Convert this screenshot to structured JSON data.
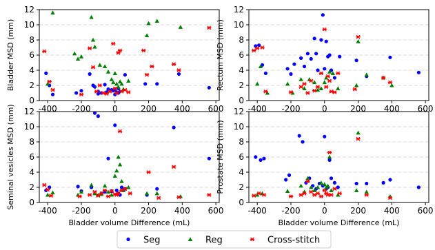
{
  "colors": {
    "seg": "#0000ff",
    "reg": "#008000",
    "cross": "#ff0000",
    "grid": "#cccccc"
  },
  "legend": {
    "items": [
      {
        "label": "Seg",
        "marker": "circle",
        "color": "#0000ff"
      },
      {
        "label": "Reg",
        "marker": "triangle",
        "color": "#008000"
      },
      {
        "label": "Cross-stitch",
        "marker": "x",
        "color": "#ff0000"
      }
    ]
  },
  "chart_data": [
    {
      "type": "scatter",
      "ylabel": "Bladder MSD (mm)",
      "xlabel": "",
      "xlim": [
        -450,
        620
      ],
      "ylim": [
        0,
        12
      ],
      "xticks": [
        -400,
        -200,
        0,
        200,
        400,
        600
      ],
      "yticks": [
        0,
        2,
        4,
        6,
        8,
        10,
        12
      ],
      "grid": "horizontal dashed",
      "series": [
        {
          "name": "Seg",
          "x": [
            -410,
            -390,
            -370,
            -230,
            -200,
            -150,
            -130,
            -120,
            -100,
            -80,
            -60,
            -40,
            -20,
            -10,
            0,
            10,
            20,
            30,
            60,
            180,
            250,
            380,
            560,
            -100,
            -50,
            0,
            20
          ],
          "y": [
            3.6,
            2.0,
            0.8,
            1.0,
            1.3,
            3.5,
            2.0,
            1.8,
            1.2,
            1.0,
            2.1,
            1.5,
            1.4,
            1.3,
            1.5,
            1.1,
            1.0,
            1.2,
            3.4,
            2.2,
            2.2,
            3.5,
            1.7,
            0.9,
            1.1,
            0.8,
            1.6
          ]
        },
        {
          "name": "Reg",
          "x": [
            -400,
            -370,
            -240,
            -220,
            -200,
            -140,
            -130,
            -120,
            -90,
            -60,
            -40,
            -20,
            -10,
            0,
            10,
            20,
            30,
            40,
            50,
            80,
            190,
            200,
            250,
            390
          ],
          "y": [
            2.2,
            11.6,
            6.2,
            5.5,
            5.8,
            11.0,
            8.0,
            7.1,
            4.7,
            4.5,
            3.8,
            2.8,
            2.4,
            3.6,
            2.2,
            1.8,
            2.5,
            2.2,
            1.5,
            2.6,
            8.6,
            10.2,
            10.5,
            9.7
          ]
        },
        {
          "name": "Cross-stitch",
          "x": [
            -420,
            -390,
            -370,
            -200,
            -150,
            -130,
            -110,
            -90,
            -70,
            -50,
            -30,
            -10,
            0,
            10,
            20,
            30,
            40,
            60,
            80,
            170,
            190,
            220,
            350,
            380,
            560
          ],
          "y": [
            6.5,
            2.5,
            1.4,
            0.8,
            6.9,
            4.4,
            1.2,
            2.0,
            1.0,
            0.9,
            1.2,
            7.5,
            1.6,
            1.0,
            6.3,
            6.6,
            1.2,
            1.4,
            1.1,
            6.6,
            3.4,
            4.5,
            4.8,
            4.0,
            9.6
          ]
        }
      ]
    },
    {
      "type": "scatter",
      "ylabel": "Rectum MSD (mm)",
      "xlabel": "",
      "xlim": [
        -450,
        620
      ],
      "ylim": [
        0,
        12
      ],
      "xticks": [
        -400,
        -200,
        0,
        200,
        400,
        600
      ],
      "yticks": [
        0,
        2,
        4,
        6,
        8,
        10,
        12
      ],
      "grid": "horizontal dashed",
      "series": [
        {
          "name": "Seg",
          "x": [
            -410,
            -390,
            -370,
            -350,
            -220,
            -200,
            -180,
            -140,
            -120,
            -100,
            -80,
            -60,
            -50,
            -40,
            -20,
            -10,
            0,
            10,
            20,
            30,
            40,
            60,
            90,
            190,
            250,
            390,
            560
          ],
          "y": [
            7.2,
            7.3,
            4.7,
            3.6,
            4.2,
            3.5,
            4.8,
            5.6,
            4.5,
            6.2,
            5.5,
            8.2,
            6.2,
            4.0,
            8.0,
            11.3,
            4.2,
            7.8,
            5.8,
            6.0,
            4.0,
            3.0,
            5.8,
            5.3,
            3.2,
            5.7,
            3.7
          ]
        },
        {
          "name": "Reg",
          "x": [
            -400,
            -380,
            -340,
            -220,
            -190,
            -140,
            -120,
            -90,
            -60,
            -40,
            -20,
            0,
            10,
            30,
            50,
            80,
            190,
            200,
            250,
            350,
            400
          ],
          "y": [
            2.2,
            4.5,
            1.0,
            2.2,
            1.0,
            2.8,
            1.6,
            2.8,
            2.4,
            1.4,
            1.6,
            2.4,
            3.0,
            3.8,
            3.6,
            1.6,
            2.0,
            7.8,
            3.4,
            3.0,
            2.0
          ]
        },
        {
          "name": "Cross-stitch",
          "x": [
            -420,
            -400,
            -370,
            -350,
            -200,
            -140,
            -120,
            -100,
            -80,
            -60,
            -40,
            -20,
            0,
            10,
            20,
            30,
            40,
            60,
            80,
            180,
            200,
            350,
            390
          ],
          "y": [
            6.6,
            6.9,
            7.0,
            1.2,
            1.1,
            1.8,
            2.2,
            1.0,
            2.6,
            1.3,
            1.8,
            3.6,
            9.4,
            1.8,
            3.2,
            2.6,
            1.2,
            1.1,
            3.6,
            1.5,
            8.4,
            3.0,
            2.4
          ]
        }
      ]
    },
    {
      "type": "scatter",
      "ylabel": "Seminal vesicles MSD (mm)",
      "xlabel": "Bladder volume Difference (mL)",
      "xlim": [
        -450,
        620
      ],
      "ylim": [
        0,
        12
      ],
      "xticks": [
        -400,
        -200,
        0,
        200,
        400,
        600
      ],
      "yticks": [
        0,
        2,
        4,
        6,
        8,
        10,
        12
      ],
      "grid": "horizontal dashed",
      "series": [
        {
          "name": "Seg",
          "x": [
            -410,
            -390,
            -220,
            -200,
            -140,
            -120,
            -100,
            -80,
            -60,
            -40,
            -20,
            0,
            10,
            20,
            30,
            40,
            60,
            190,
            250,
            350,
            560
          ],
          "y": [
            1.6,
            2.0,
            2.1,
            1.5,
            2.0,
            11.8,
            11.4,
            1.2,
            1.4,
            5.8,
            1.5,
            10.2,
            1.6,
            1.2,
            1.0,
            2.0,
            1.8,
            1.0,
            1.8,
            9.9,
            5.8
          ]
        },
        {
          "name": "Reg",
          "x": [
            -400,
            -370,
            -220,
            -200,
            -140,
            -120,
            -100,
            -80,
            -60,
            -40,
            -20,
            0,
            10,
            20,
            30,
            40,
            50,
            80,
            190,
            250,
            390
          ],
          "y": [
            1.0,
            1.3,
            1.0,
            1.4,
            2.3,
            1.2,
            1.0,
            1.1,
            2.2,
            1.4,
            1.0,
            3.5,
            4.2,
            6.0,
            5.0,
            2.8,
            1.6,
            2.0,
            1.2,
            1.2,
            0.8
          ]
        },
        {
          "name": "Cross-stitch",
          "x": [
            -420,
            -400,
            -380,
            -210,
            -150,
            -120,
            -100,
            -80,
            -60,
            -40,
            -20,
            0,
            10,
            20,
            30,
            40,
            60,
            90,
            200,
            260,
            350,
            380,
            560
          ],
          "y": [
            2.3,
            1.7,
            0.9,
            0.8,
            1.0,
            1.4,
            0.9,
            1.2,
            1.6,
            0.8,
            1.5,
            1.1,
            1.0,
            1.2,
            9.4,
            1.6,
            1.8,
            1.2,
            4.0,
            0.6,
            4.7,
            0.7,
            1.0
          ]
        }
      ]
    },
    {
      "type": "scatter",
      "ylabel": "Prostate MSD (mm)",
      "xlabel": "Bladder volume Difference (mL)",
      "xlim": [
        -450,
        620
      ],
      "ylim": [
        0,
        12
      ],
      "xticks": [
        -400,
        -200,
        0,
        200,
        400,
        600
      ],
      "yticks": [
        0,
        2,
        4,
        6,
        8,
        10,
        12
      ],
      "grid": "horizontal dashed",
      "series": [
        {
          "name": "Seg",
          "x": [
            -410,
            -380,
            -360,
            -230,
            -210,
            -150,
            -130,
            -110,
            -90,
            -70,
            -50,
            -30,
            -10,
            0,
            10,
            20,
            30,
            40,
            60,
            80,
            190,
            250,
            350,
            390,
            560
          ],
          "y": [
            6.0,
            5.6,
            5.8,
            3.0,
            3.6,
            8.8,
            8.0,
            2.6,
            3.2,
            2.2,
            1.8,
            2.5,
            2.2,
            8.7,
            1.8,
            2.0,
            5.6,
            3.2,
            2.6,
            2.0,
            2.5,
            2.5,
            2.6,
            3.0,
            2.0
          ]
        },
        {
          "name": "Reg",
          "x": [
            -400,
            -370,
            -220,
            -140,
            -120,
            -100,
            -80,
            -60,
            -40,
            -20,
            0,
            10,
            20,
            30,
            40,
            80,
            190,
            200,
            250,
            390
          ],
          "y": [
            1.0,
            1.2,
            1.5,
            2.2,
            1.4,
            3.2,
            2.0,
            1.6,
            2.0,
            2.6,
            2.4,
            2.0,
            2.2,
            6.0,
            1.6,
            1.0,
            1.6,
            9.2,
            1.4,
            0.8
          ]
        },
        {
          "name": "Cross-stitch",
          "x": [
            -420,
            -390,
            -360,
            -200,
            -140,
            -120,
            -100,
            -80,
            -60,
            -40,
            -20,
            0,
            10,
            20,
            30,
            40,
            60,
            90,
            200,
            250,
            390
          ],
          "y": [
            0.9,
            1.2,
            1.0,
            0.8,
            1.0,
            1.2,
            2.8,
            1.4,
            1.0,
            1.2,
            0.8,
            1.6,
            1.2,
            1.0,
            6.6,
            1.0,
            1.8,
            1.2,
            8.4,
            1.0,
            0.6
          ]
        }
      ]
    }
  ]
}
